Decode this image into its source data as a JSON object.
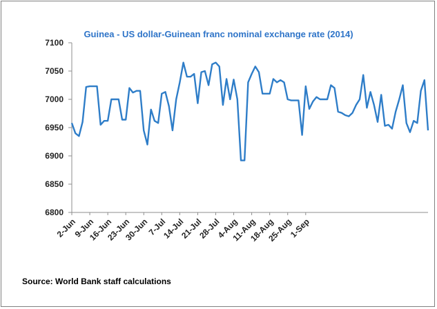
{
  "chart_data": {
    "type": "line",
    "title": "Guinea - US dollar-Guinean franc nominal exchange rate (2014)",
    "xlabel": "",
    "ylabel": "",
    "ylim": [
      6800,
      7100
    ],
    "yticks": [
      6800,
      6850,
      6900,
      6950,
      7000,
      7050,
      7100
    ],
    "x_tick_labels": [
      "2-Jun",
      "9-Jun",
      "16-Jun",
      "23-Jun",
      "30-Jun",
      "7-Jul",
      "14-Jul",
      "21-Jul",
      "28-Jul",
      "4-Aug",
      "11-Aug",
      "18-Aug",
      "25-Aug",
      "1-Sep"
    ],
    "x_start": "2014-06-02",
    "grid": false,
    "legend": "none",
    "line_color": "#2e7dc8",
    "series": [
      {
        "values": [
          6958,
          6940,
          6935,
          6960,
          7022,
          7023,
          7023,
          7023,
          6955,
          6962,
          6962,
          7000,
          7000,
          7000,
          6964,
          6964,
          7020,
          7012,
          7015,
          7015,
          6945,
          6920,
          6982,
          6962,
          6958,
          7010,
          7013,
          6988,
          6945,
          7000,
          7030,
          7065,
          7040,
          7040,
          7045,
          6993,
          7048,
          7050,
          7025,
          7062,
          7065,
          7058,
          6990,
          7036,
          7000,
          7035,
          7000,
          6892,
          6892,
          7030,
          7045,
          7058,
          7048,
          7010,
          7010,
          7010,
          7036,
          7030,
          7034,
          7030,
          7000,
          6998,
          6998,
          6998,
          6937,
          7023,
          6983,
          6996,
          7004,
          7000,
          7000,
          7000,
          7025,
          7020,
          6978,
          6976,
          6972,
          6970,
          6976,
          6990,
          7000,
          7043,
          6985,
          7013,
          6990,
          6960,
          7008,
          6953,
          6955,
          6948,
          6978,
          7000,
          7025,
          6958,
          6942,
          6962,
          6958,
          7015,
          7034,
          6945
        ]
      }
    ]
  },
  "source": "Source: World Bank staff calculations"
}
